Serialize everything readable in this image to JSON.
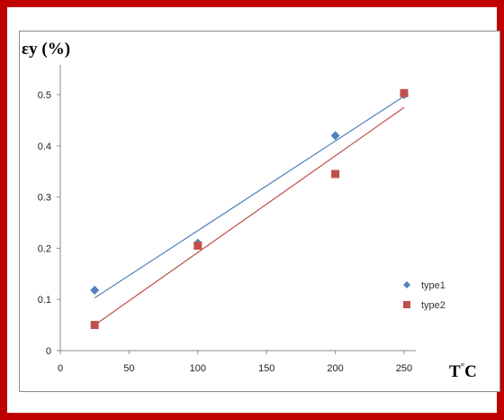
{
  "chart_data": {
    "type": "scatter",
    "ylabel": "εy (%)",
    "xlabel_main": "T",
    "xlabel_sup": "°",
    "xlabel_unit": "C",
    "xlim": [
      0,
      250
    ],
    "ylim": [
      0,
      0.5
    ],
    "xticks": [
      0,
      50,
      100,
      150,
      200,
      250
    ],
    "xtick_labels": [
      "0",
      "50",
      "100",
      "150",
      "200",
      "250"
    ],
    "yticks": [
      0,
      0.1,
      0.2,
      0.3,
      0.4,
      0.5
    ],
    "ytick_labels": [
      "0",
      "0.1",
      "0.2",
      "0.3",
      "0.4",
      "0.5"
    ],
    "grid": false,
    "legend_position": "right",
    "series": [
      {
        "name": "type1",
        "marker": "diamond",
        "color": "#4f81bd",
        "x": [
          25,
          100,
          200,
          250
        ],
        "y": [
          0.118,
          0.21,
          0.42,
          0.5
        ],
        "trendline": [
          [
            25,
            0.103
          ],
          [
            250,
            0.497
          ]
        ]
      },
      {
        "name": "type2",
        "marker": "square",
        "color": "#c0504d",
        "x": [
          25,
          100,
          200,
          250
        ],
        "y": [
          0.05,
          0.205,
          0.345,
          0.503
        ],
        "trendline": [
          [
            25,
            0.05
          ],
          [
            250,
            0.475
          ]
        ]
      }
    ]
  },
  "colors": {
    "frame_border": "#c00000",
    "axis_line": "#8c8c8c"
  }
}
